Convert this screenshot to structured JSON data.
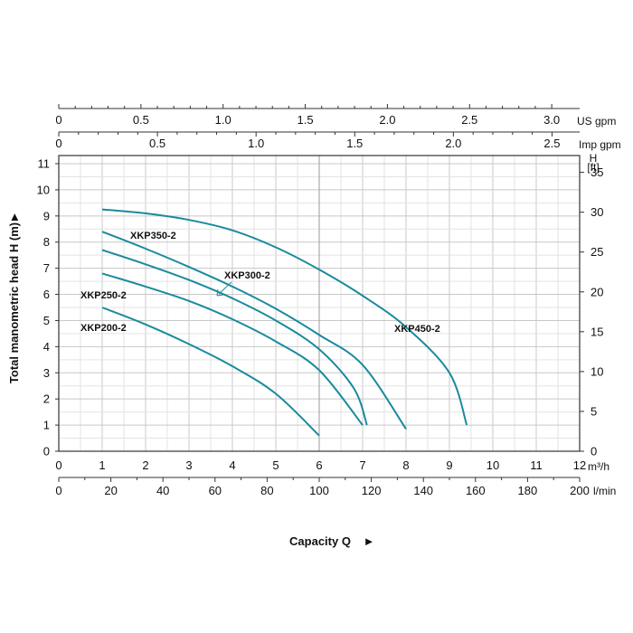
{
  "chart_data": {
    "type": "line",
    "ylabel": "Total manometric head H (m)",
    "xlabel": "Capacity Q",
    "arrow_glyph": "►",
    "y_axis": {
      "min": 0,
      "max": 11,
      "ticks": [
        "0",
        "1",
        "2",
        "3",
        "4",
        "5",
        "6",
        "7",
        "8",
        "9",
        "10",
        "11"
      ]
    },
    "y_right_axis": {
      "unit_top": "H",
      "unit_bottom": "[ft]",
      "min": 0,
      "max": 36.09,
      "ticks": [
        "0",
        "5",
        "10",
        "15",
        "20",
        "25",
        "30",
        "35"
      ]
    },
    "x_axis_m3h": {
      "unit": "m³/h",
      "min": 0,
      "max": 12,
      "ticks": [
        "0",
        "1",
        "2",
        "3",
        "4",
        "5",
        "6",
        "7",
        "8",
        "9",
        "10",
        "11",
        "12"
      ]
    },
    "x_axis_lmin": {
      "unit": "l/min",
      "min": 0,
      "max": 200,
      "ticks": [
        "0",
        "20",
        "40",
        "60",
        "80",
        "100",
        "120",
        "140",
        "160",
        "180",
        "200"
      ]
    },
    "x_axis_usgpm": {
      "unit": "US gpm",
      "min": 0,
      "max": 3.17,
      "ticks": [
        "0",
        "0.5",
        "1.0",
        "1.5",
        "2.0",
        "2.5",
        "3.0"
      ]
    },
    "x_axis_impgpm": {
      "unit": "Imp gpm",
      "min": 0,
      "max": 2.64,
      "ticks": [
        "0",
        "0.5",
        "1.0",
        "1.5",
        "2.0",
        "2.5"
      ]
    },
    "grid": true,
    "line_color": "#1a8a9e",
    "series": [
      {
        "name": "XKP450-2",
        "points": [
          [
            1,
            9.25
          ],
          [
            2,
            9.1
          ],
          [
            3,
            8.85
          ],
          [
            4,
            8.45
          ],
          [
            5,
            7.8
          ],
          [
            6,
            6.95
          ],
          [
            7,
            5.95
          ],
          [
            8,
            4.75
          ],
          [
            9,
            3.0
          ],
          [
            9.4,
            1.0
          ]
        ]
      },
      {
        "name": "XKP350-2",
        "points": [
          [
            1,
            8.4
          ],
          [
            2,
            7.75
          ],
          [
            3,
            7.05
          ],
          [
            4,
            6.3
          ],
          [
            5,
            5.45
          ],
          [
            6,
            4.45
          ],
          [
            7,
            3.3
          ],
          [
            8,
            0.85
          ]
        ]
      },
      {
        "name": "XKP300-2",
        "points": [
          [
            1,
            7.7
          ],
          [
            2,
            7.15
          ],
          [
            3,
            6.55
          ],
          [
            4,
            5.85
          ],
          [
            5,
            5.0
          ],
          [
            6,
            3.9
          ],
          [
            6.8,
            2.4
          ],
          [
            7.1,
            1.0
          ]
        ]
      },
      {
        "name": "XKP250-2",
        "points": [
          [
            1,
            6.8
          ],
          [
            2,
            6.3
          ],
          [
            3,
            5.75
          ],
          [
            4,
            5.05
          ],
          [
            5,
            4.2
          ],
          [
            6,
            3.1
          ],
          [
            7,
            1.0
          ]
        ]
      },
      {
        "name": "XKP200-2",
        "points": [
          [
            1,
            5.5
          ],
          [
            2,
            4.85
          ],
          [
            3,
            4.1
          ],
          [
            4,
            3.25
          ],
          [
            5,
            2.2
          ],
          [
            6,
            0.6
          ]
        ]
      }
    ],
    "labels": [
      {
        "series": "XKP450-2",
        "text": "XKP450-2"
      },
      {
        "series": "XKP350-2",
        "text": "XKP350-2"
      },
      {
        "series": "XKP300-2",
        "text": "XKP300-2"
      },
      {
        "series": "XKP250-2",
        "text": "XKP250-2"
      },
      {
        "series": "XKP200-2",
        "text": "XKP200-2"
      }
    ]
  }
}
